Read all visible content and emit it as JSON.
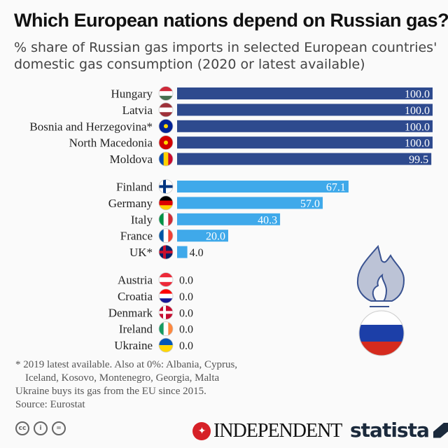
{
  "header": {
    "title": "Which European nations depend on Russian gas?",
    "subtitle": "% share of Russian gas imports in selected European countries' domestic gas consumption (2020 or latest available)"
  },
  "chart_data": {
    "type": "bar",
    "orientation": "horizontal",
    "title": "Which European nations depend on Russian gas?",
    "subtitle": "% share of Russian gas imports in selected European countries' domestic gas consumption (2020 or latest available)",
    "xlim": [
      0,
      100
    ],
    "grid": false,
    "colors": {
      "high": "#2e4a8e",
      "mid": "#3fa9ea"
    },
    "groups": [
      {
        "color": "high",
        "items": [
          {
            "label": "Hungary",
            "value": 100.0,
            "value_label": "100.0",
            "flag": "hungary"
          },
          {
            "label": "Latvia",
            "value": 100.0,
            "value_label": "100.0",
            "flag": "latvia"
          },
          {
            "label": "Bosnia and Herzegovina*",
            "value": 100.0,
            "value_label": "100.0",
            "flag": "bosnia"
          },
          {
            "label": "North Macedonia",
            "value": 100.0,
            "value_label": "100.0",
            "flag": "macedonia"
          },
          {
            "label": "Moldova",
            "value": 99.5,
            "value_label": "99.5",
            "flag": "moldova"
          }
        ]
      },
      {
        "color": "mid",
        "items": [
          {
            "label": "Finland",
            "value": 67.1,
            "value_label": "67.1",
            "flag": "finland"
          },
          {
            "label": "Germany",
            "value": 57.0,
            "value_label": "57.0",
            "flag": "germany"
          },
          {
            "label": "Italy",
            "value": 40.3,
            "value_label": "40.3",
            "flag": "italy"
          },
          {
            "label": "France",
            "value": 20.0,
            "value_label": "20.0",
            "flag": "france"
          },
          {
            "label": "UK*",
            "value": 4.0,
            "value_label": "4.0",
            "flag": "uk"
          }
        ]
      },
      {
        "color": "mid",
        "items": [
          {
            "label": "Austria",
            "value": 0.0,
            "value_label": "0.0",
            "flag": "austria"
          },
          {
            "label": "Croatia",
            "value": 0.0,
            "value_label": "0.0",
            "flag": "croatia"
          },
          {
            "label": "Denmark",
            "value": 0.0,
            "value_label": "0.0",
            "flag": "denmark"
          },
          {
            "label": "Ireland",
            "value": 0.0,
            "value_label": "0.0",
            "flag": "ireland"
          },
          {
            "label": "Ukraine",
            "value": 0.0,
            "value_label": "0.0",
            "flag": "ukraine"
          }
        ]
      }
    ]
  },
  "footer": {
    "note1": "* 2019  latest available. Also at 0%: Albania, Cyprus,",
    "note2": "Iceland, Kosovo, Montenegro, Georgia, Malta",
    "note3": "Ukraine buys its gas from the EU since 2015.",
    "source": "Source: Eurostat",
    "brand1": "INDEPENDENT",
    "brand2": "statista"
  }
}
